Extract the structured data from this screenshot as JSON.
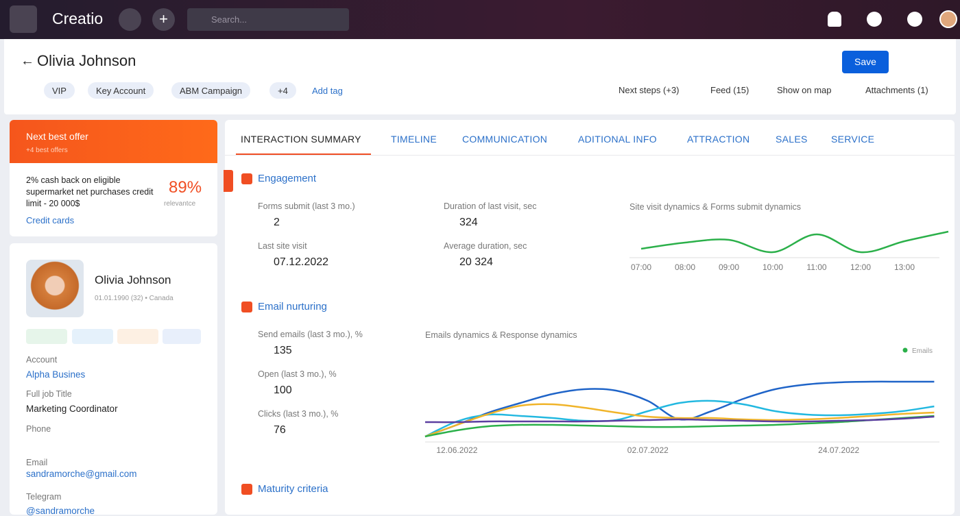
{
  "topbar": {
    "brand": "Creatio",
    "search": "Search..."
  },
  "header": {
    "name": "Olivia Johnson",
    "tags": [
      "VIP",
      "Key Account",
      "ABM Campaign"
    ],
    "more_tags": "+4",
    "add_tag": "Add tag",
    "save": "Save",
    "links": [
      "Next steps (+3)",
      "Feed (15)",
      "Show on map",
      "Attachments (1)"
    ]
  },
  "offer": {
    "title": "Next best offer",
    "subtitle": "+4 best offers",
    "text": "2% cash back on eligible supermarket net purchases credit limit - 20 000$",
    "relevance": "89%",
    "relevance_label": "relevantce",
    "link": "Credit cards"
  },
  "contact": {
    "name": "Olivia Johnson",
    "meta": "01.01.1990 (32) • Canada",
    "fields": [
      {
        "label": "Account",
        "value": "Alpha Busines"
      },
      {
        "label": "Full job Title",
        "value": "Marketing Coordinator"
      },
      {
        "label": "Phone"
      },
      {
        "label": "Email",
        "value": "sandramorche@gmail.com"
      },
      {
        "label": "Telegram",
        "value": "@sandramorche"
      }
    ]
  },
  "tabs": [
    "INTERACTION SUMMARY",
    "TIMELINE",
    "COMMUNICATION",
    "ADITIONAL INFO",
    "ATTRACTION",
    "SALES",
    "SERVICE"
  ],
  "engagement": {
    "title": "Engagement",
    "metrics": [
      {
        "label": "Forms submit (last 3 mo.)",
        "value": "2"
      },
      {
        "label": "Last site visit",
        "value": "07.12.2022"
      },
      {
        "label": "Duration of last visit, sec",
        "value": "324"
      },
      {
        "label": "Average duration, sec",
        "value": "20 324"
      }
    ],
    "chart_data": {
      "type": "line",
      "title": "Site visit dynamics & Forms submit dynamics",
      "categories": [
        "07:00",
        "08:00",
        "09:00",
        "10:00",
        "11:00",
        "12:00",
        "13:00",
        null
      ],
      "series": [
        {
          "color": "#2bb04a",
          "values": [
            17,
            26,
            30,
            12,
            38,
            12,
            28,
            42
          ]
        }
      ]
    }
  },
  "email": {
    "title": "Email nurturing",
    "metrics": [
      {
        "label": "Send emails (last 3 mo.), %",
        "value": "135"
      },
      {
        "label": "Open (last 3 mo.), %",
        "value": "100"
      },
      {
        "label": "Clicks (last 3 mo.), %",
        "value": "76"
      }
    ],
    "chart_data": {
      "type": "line",
      "title": "Emails dynamics & Response dynamics",
      "categories": [
        null,
        "12.06.2022",
        null,
        null,
        null,
        null,
        null,
        "02.07.2022",
        null,
        null,
        null,
        null,
        null,
        "24.07.2022",
        null,
        null,
        null
      ],
      "series": [
        {
          "color": "#1f64c8",
          "values": [
            3,
            20,
            38,
            52,
            65,
            72,
            70,
            55,
            28,
            40,
            58,
            72,
            79,
            82,
            83,
            83,
            83
          ]
        },
        {
          "color": "#22b8e0",
          "values": [
            3,
            25,
            35,
            33,
            30,
            26,
            27,
            40,
            52,
            55,
            50,
            40,
            35,
            34,
            36,
            40,
            47
          ]
        },
        {
          "color": "#f0b429",
          "values": [
            3,
            20,
            36,
            48,
            50,
            45,
            38,
            32,
            30,
            30,
            28,
            27,
            28,
            30,
            33,
            36,
            38
          ]
        },
        {
          "name": "Emails",
          "color": "#2bb04a",
          "values": [
            3,
            12,
            18,
            20,
            20,
            19,
            18,
            17,
            17,
            18,
            19,
            20,
            22,
            24,
            27,
            30,
            33
          ]
        },
        {
          "color": "#5b3fa0",
          "values": [
            24,
            24,
            25,
            25,
            25,
            25,
            26,
            27,
            28,
            27,
            26,
            25,
            25,
            26,
            27,
            29,
            32
          ]
        }
      ]
    }
  },
  "maturity": {
    "title": "Maturity criteria"
  }
}
